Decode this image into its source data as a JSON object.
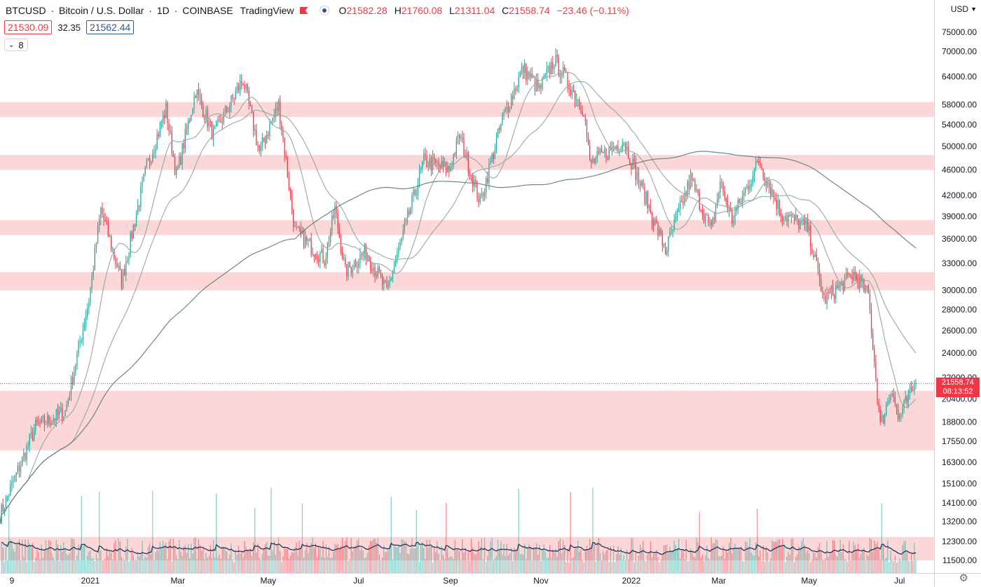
{
  "header": {
    "symbol": "BTCUSD",
    "description": "Bitcoin / U.S. Dollar",
    "interval": "1D",
    "exchange": "COINBASE",
    "source": "TradingView",
    "open_label": "O",
    "open": "21582.28",
    "high_label": "H",
    "high": "21760.08",
    "low_label": "L",
    "low": "21311.04",
    "close_label": "C",
    "close": "21558.74",
    "change": "−23.46 (−0.11%)"
  },
  "price_row": {
    "bid": "21530.09",
    "spread": "32.35",
    "ask": "21562.44"
  },
  "indicators_toggle": {
    "count": "8"
  },
  "currency": "USD",
  "last_price_tag": {
    "price": "21558.74",
    "countdown": "08:13:52"
  },
  "colors": {
    "up": "#26a69a",
    "down": "#f23645",
    "zone": "#f9c9cb",
    "ma_fast": "#8fa8a3",
    "ma_slow": "#5e7b78",
    "volume_ma": "#1e3a5f"
  },
  "chart_data": {
    "type": "candlestick",
    "scale": "log",
    "y_ticks": [
      75000,
      70000,
      64000,
      58000,
      54000,
      50000,
      46000,
      42000,
      39000,
      36000,
      33000,
      30000,
      28000,
      26000,
      24000,
      22000,
      20400,
      18800,
      17550,
      16300,
      15100,
      14100,
      13200,
      12300,
      11500
    ],
    "y_tick_labels": [
      "75000.00",
      "70000.00",
      "64000.00",
      "58000.00",
      "54000.00",
      "50000.00",
      "46000.00",
      "42000.00",
      "39000.00",
      "36000.00",
      "33000.00",
      "30000.00",
      "28000.00",
      "26000.00",
      "24000.00",
      "22000.00",
      "20400.00",
      "18800.00",
      "17550.00",
      "16300.00",
      "15100.00",
      "14100.00",
      "13200.00",
      "12300.00",
      "11500.00"
    ],
    "x_labels": [
      "9",
      "2021",
      "Mar",
      "May",
      "Jul",
      "Sep",
      "Nov",
      "2022",
      "Mar",
      "May",
      "Jul"
    ],
    "x_label_dates": [
      "2020-11-09",
      "2021-01-01",
      "2021-03-01",
      "2021-05-01",
      "2021-07-01",
      "2021-09-01",
      "2021-11-01",
      "2022-01-01",
      "2022-03-01",
      "2022-05-01",
      "2022-07-01"
    ],
    "start_date": "2020-11-01",
    "end_date": "2022-07-12",
    "resistance_zones": [
      [
        55500,
        58500
      ],
      [
        46000,
        48500
      ],
      [
        36500,
        38500
      ],
      [
        30000,
        32000
      ],
      [
        17000,
        21000
      ],
      [
        11500,
        12500
      ]
    ],
    "price_path": [
      [
        "2020-11-01",
        13500
      ],
      [
        "2020-11-25",
        18500
      ],
      [
        "2020-12-15",
        19500
      ],
      [
        "2020-12-31",
        29000
      ],
      [
        "2021-01-08",
        40000
      ],
      [
        "2021-01-22",
        31000
      ],
      [
        "2021-02-08",
        46500
      ],
      [
        "2021-02-21",
        57000
      ],
      [
        "2021-02-28",
        45000
      ],
      [
        "2021-03-13",
        61000
      ],
      [
        "2021-03-25",
        52000
      ],
      [
        "2021-04-14",
        63500
      ],
      [
        "2021-04-25",
        49000
      ],
      [
        "2021-05-08",
        58000
      ],
      [
        "2021-05-19",
        37000
      ],
      [
        "2021-06-08",
        33500
      ],
      [
        "2021-06-15",
        40000
      ],
      [
        "2021-06-22",
        32000
      ],
      [
        "2021-07-06",
        34500
      ],
      [
        "2021-07-20",
        29800
      ],
      [
        "2021-08-14",
        47500
      ],
      [
        "2021-08-31",
        46000
      ],
      [
        "2021-09-07",
        52000
      ],
      [
        "2021-09-21",
        41000
      ],
      [
        "2021-10-06",
        55000
      ],
      [
        "2021-10-20",
        66000
      ],
      [
        "2021-10-31",
        61000
      ],
      [
        "2021-11-10",
        68000
      ],
      [
        "2021-11-30",
        57000
      ],
      [
        "2021-12-04",
        47000
      ],
      [
        "2021-12-27",
        51000
      ],
      [
        "2022-01-10",
        42000
      ],
      [
        "2022-01-24",
        34500
      ],
      [
        "2022-02-10",
        44500
      ],
      [
        "2022-02-24",
        37000
      ],
      [
        "2022-03-02",
        44000
      ],
      [
        "2022-03-10",
        38500
      ],
      [
        "2022-03-28",
        47500
      ],
      [
        "2022-04-12",
        39500
      ],
      [
        "2022-04-30",
        37500
      ],
      [
        "2022-05-11",
        29000
      ],
      [
        "2022-05-31",
        31800
      ],
      [
        "2022-06-10",
        29500
      ],
      [
        "2022-06-18",
        18500
      ],
      [
        "2022-06-26",
        21300
      ],
      [
        "2022-06-30",
        19000
      ],
      [
        "2022-07-12",
        21558.74
      ]
    ],
    "volume_note": "Relative daily volume bars with moving average along the bottom",
    "last": 21558.74
  }
}
